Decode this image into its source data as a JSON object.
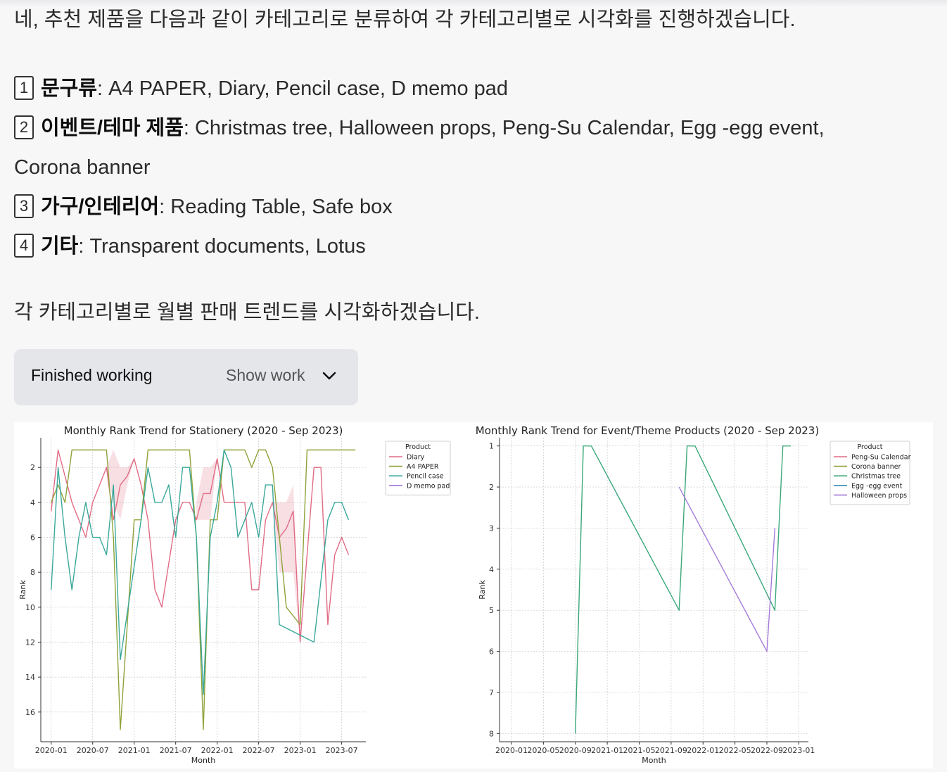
{
  "intro": "네, 추천 제품을 다음과 같이 카테고리로 분류하여 각 카테고리별로 시각화를 진행하겠습니다.",
  "categories": [
    {
      "num": "1",
      "name": "문구류",
      "rest": ": A4 PAPER, Diary, Pencil case, D memo pad"
    },
    {
      "num": "2",
      "name": "이벤트/테마 제품",
      "rest": ": Christmas tree, Halloween props, Peng-Su Calendar, Egg -egg event,",
      "rest2": "Corona banner"
    },
    {
      "num": "3",
      "name": "가구/인테리어",
      "rest": ": Reading Table, Safe box"
    },
    {
      "num": "4",
      "name": "기타",
      "rest": ": Transparent documents, Lotus"
    }
  ],
  "outro": "각 카테고리별로 월별 판매 트렌드를 시각화하겠습니다.",
  "work": {
    "status": "Finished working",
    "show_label": "Show work",
    "icon": "chevron-down-icon"
  },
  "chart_data": [
    {
      "type": "line",
      "title": "Monthly Rank Trend for Stationery (2020 - Sep 2023)",
      "xlabel": "Month",
      "ylabel": "Rank",
      "y_inverted": true,
      "ylim": [
        17.7,
        0.3
      ],
      "yticks": [
        2,
        4,
        6,
        8,
        10,
        12,
        14,
        16
      ],
      "xticks": [
        "2020-01",
        "2020-07",
        "2021-01",
        "2021-07",
        "2022-01",
        "2022-07",
        "2023-01",
        "2023-07"
      ],
      "legend": {
        "title": "Product",
        "placement": "top-right"
      },
      "grid": true,
      "series": [
        {
          "name": "Diary",
          "color": "#e06c84",
          "points": [
            [
              "2020-01",
              4.5
            ],
            [
              "2020-02",
              1
            ],
            [
              "2020-04",
              4
            ],
            [
              "2020-06",
              6
            ],
            [
              "2020-07",
              4
            ],
            [
              "2020-09",
              2
            ],
            [
              "2020-10",
              5
            ],
            [
              "2020-11",
              3
            ],
            [
              "2020-12",
              2.5
            ],
            [
              "2021-01",
              1.5
            ],
            [
              "2021-02",
              3
            ],
            [
              "2021-03",
              5
            ],
            [
              "2021-04",
              9
            ],
            [
              "2021-05",
              10
            ],
            [
              "2021-07",
              5
            ],
            [
              "2021-08",
              4
            ],
            [
              "2021-09",
              4
            ],
            [
              "2021-10",
              5
            ],
            [
              "2021-11",
              3.5
            ],
            [
              "2021-12",
              3.5
            ],
            [
              "2022-01",
              1.5
            ],
            [
              "2022-02",
              4
            ],
            [
              "2022-05",
              4
            ],
            [
              "2022-06",
              9
            ],
            [
              "2022-07",
              9
            ],
            [
              "2022-08",
              5
            ],
            [
              "2022-09",
              4
            ],
            [
              "2022-10",
              6
            ],
            [
              "2022-11",
              5.5
            ],
            [
              "2022-12",
              4.5
            ],
            [
              "2023-01",
              12
            ],
            [
              "2023-03",
              2
            ],
            [
              "2023-04",
              2
            ],
            [
              "2023-05",
              11
            ],
            [
              "2023-06",
              7
            ],
            [
              "2023-07",
              6
            ],
            [
              "2023-08",
              7
            ]
          ]
        },
        {
          "name": "A4 PAPER",
          "color": "#8ea33a",
          "points": [
            [
              "2020-01",
              4
            ],
            [
              "2020-02",
              3
            ],
            [
              "2020-03",
              4
            ],
            [
              "2020-04",
              1
            ],
            [
              "2020-09",
              1
            ],
            [
              "2020-10",
              6
            ],
            [
              "2020-11",
              17
            ],
            [
              "2021-01",
              5
            ],
            [
              "2021-02",
              5
            ],
            [
              "2021-03",
              1
            ],
            [
              "2021-09",
              1
            ],
            [
              "2021-10",
              6
            ],
            [
              "2021-11",
              17
            ],
            [
              "2021-12",
              5
            ],
            [
              "2022-01",
              5
            ],
            [
              "2022-02",
              1
            ],
            [
              "2022-05",
              1
            ],
            [
              "2022-06",
              2
            ],
            [
              "2022-07",
              1
            ],
            [
              "2022-08",
              1
            ],
            [
              "2022-09",
              2
            ],
            [
              "2022-10",
              6
            ],
            [
              "2022-11",
              10
            ],
            [
              "2023-01",
              11
            ],
            [
              "2023-02",
              1
            ],
            [
              "2023-09",
              1
            ]
          ]
        },
        {
          "name": "Pencil case",
          "color": "#3aa89a",
          "points": [
            [
              "2020-01",
              9
            ],
            [
              "2020-02",
              2
            ],
            [
              "2020-03",
              6
            ],
            [
              "2020-04",
              9
            ],
            [
              "2020-05",
              6
            ],
            [
              "2020-06",
              4
            ],
            [
              "2020-07",
              6
            ],
            [
              "2020-08",
              6
            ],
            [
              "2020-09",
              7
            ],
            [
              "2020-10",
              3
            ],
            [
              "2020-11",
              13
            ],
            [
              "2021-02",
              5
            ],
            [
              "2021-03",
              2
            ],
            [
              "2021-04",
              4
            ],
            [
              "2021-05",
              4
            ],
            [
              "2021-06",
              3
            ],
            [
              "2021-07",
              6
            ],
            [
              "2021-08",
              2
            ],
            [
              "2021-09",
              2
            ],
            [
              "2021-10",
              6
            ],
            [
              "2021-11",
              15
            ],
            [
              "2021-12",
              6
            ],
            [
              "2022-01",
              4
            ],
            [
              "2022-02",
              1
            ],
            [
              "2022-03",
              2
            ],
            [
              "2022-04",
              6
            ],
            [
              "2022-05",
              5
            ],
            [
              "2022-06",
              4
            ],
            [
              "2022-07",
              6
            ],
            [
              "2022-08",
              3
            ],
            [
              "2022-09",
              3
            ],
            [
              "2022-10",
              11
            ],
            [
              "2023-03",
              12
            ],
            [
              "2023-05",
              5
            ],
            [
              "2023-06",
              4
            ],
            [
              "2023-07",
              4
            ],
            [
              "2023-08",
              5
            ]
          ]
        },
        {
          "name": "D memo pad",
          "color": "#a57bd9",
          "points": []
        }
      ],
      "bands": [
        {
          "series": "Diary",
          "color": "#e06c84",
          "points": [
            [
              "2020-09",
              2,
              2
            ],
            [
              "2020-10",
              1,
              4
            ],
            [
              "2020-11",
              2,
              5
            ],
            [
              "2020-12",
              2,
              3
            ],
            [
              "2021-01",
              1.5,
              1.5
            ]
          ]
        },
        {
          "series": "Diary",
          "color": "#e06c84",
          "points": [
            [
              "2021-10",
              4,
              5
            ],
            [
              "2021-11",
              2,
              5
            ],
            [
              "2021-12",
              2,
              5
            ],
            [
              "2022-01",
              1.5,
              1.5
            ]
          ]
        },
        {
          "series": "Diary",
          "color": "#e06c84",
          "points": [
            [
              "2022-09",
              4,
              4
            ],
            [
              "2022-10",
              4,
              8
            ],
            [
              "2022-11",
              4,
              8
            ],
            [
              "2022-12",
              3,
              8
            ],
            [
              "2023-01",
              12,
              12
            ]
          ]
        }
      ]
    },
    {
      "type": "line",
      "title": "Monthly Rank Trend for Event/Theme Products (2020 - Sep 2023)",
      "xlabel": "Month",
      "ylabel": "Rank",
      "y_inverted": true,
      "ylim": [
        8.2,
        0.8
      ],
      "yticks": [
        1,
        2,
        3,
        4,
        5,
        6,
        7,
        8
      ],
      "xticks": [
        "2020-01",
        "2020-05",
        "2020-09",
        "2021-01",
        "2021-05",
        "2021-09",
        "2022-01",
        "2022-05",
        "2022-09",
        "2023-01"
      ],
      "legend": {
        "title": "Product",
        "placement": "top-right"
      },
      "grid": true,
      "series": [
        {
          "name": "Peng-Su Calendar",
          "color": "#e06c84",
          "points": []
        },
        {
          "name": "Corona banner",
          "color": "#8ea33a",
          "points": []
        },
        {
          "name": "Christmas tree",
          "color": "#3aa87a",
          "points": [
            [
              "2020-09",
              8
            ],
            [
              "2020-10",
              1
            ],
            [
              "2020-11",
              1
            ],
            [
              "2021-10",
              5
            ],
            [
              "2021-11",
              1
            ],
            [
              "2021-12",
              1
            ],
            [
              "2022-10",
              5
            ],
            [
              "2022-11",
              1
            ],
            [
              "2022-12",
              1
            ]
          ]
        },
        {
          "name": "Egg -egg event",
          "color": "#3b8fb5",
          "points": []
        },
        {
          "name": "Halloween props",
          "color": "#a57bd9",
          "points": [
            [
              "2021-10",
              2
            ],
            [
              "2022-09",
              6
            ],
            [
              "2022-10",
              3
            ]
          ]
        }
      ]
    }
  ]
}
